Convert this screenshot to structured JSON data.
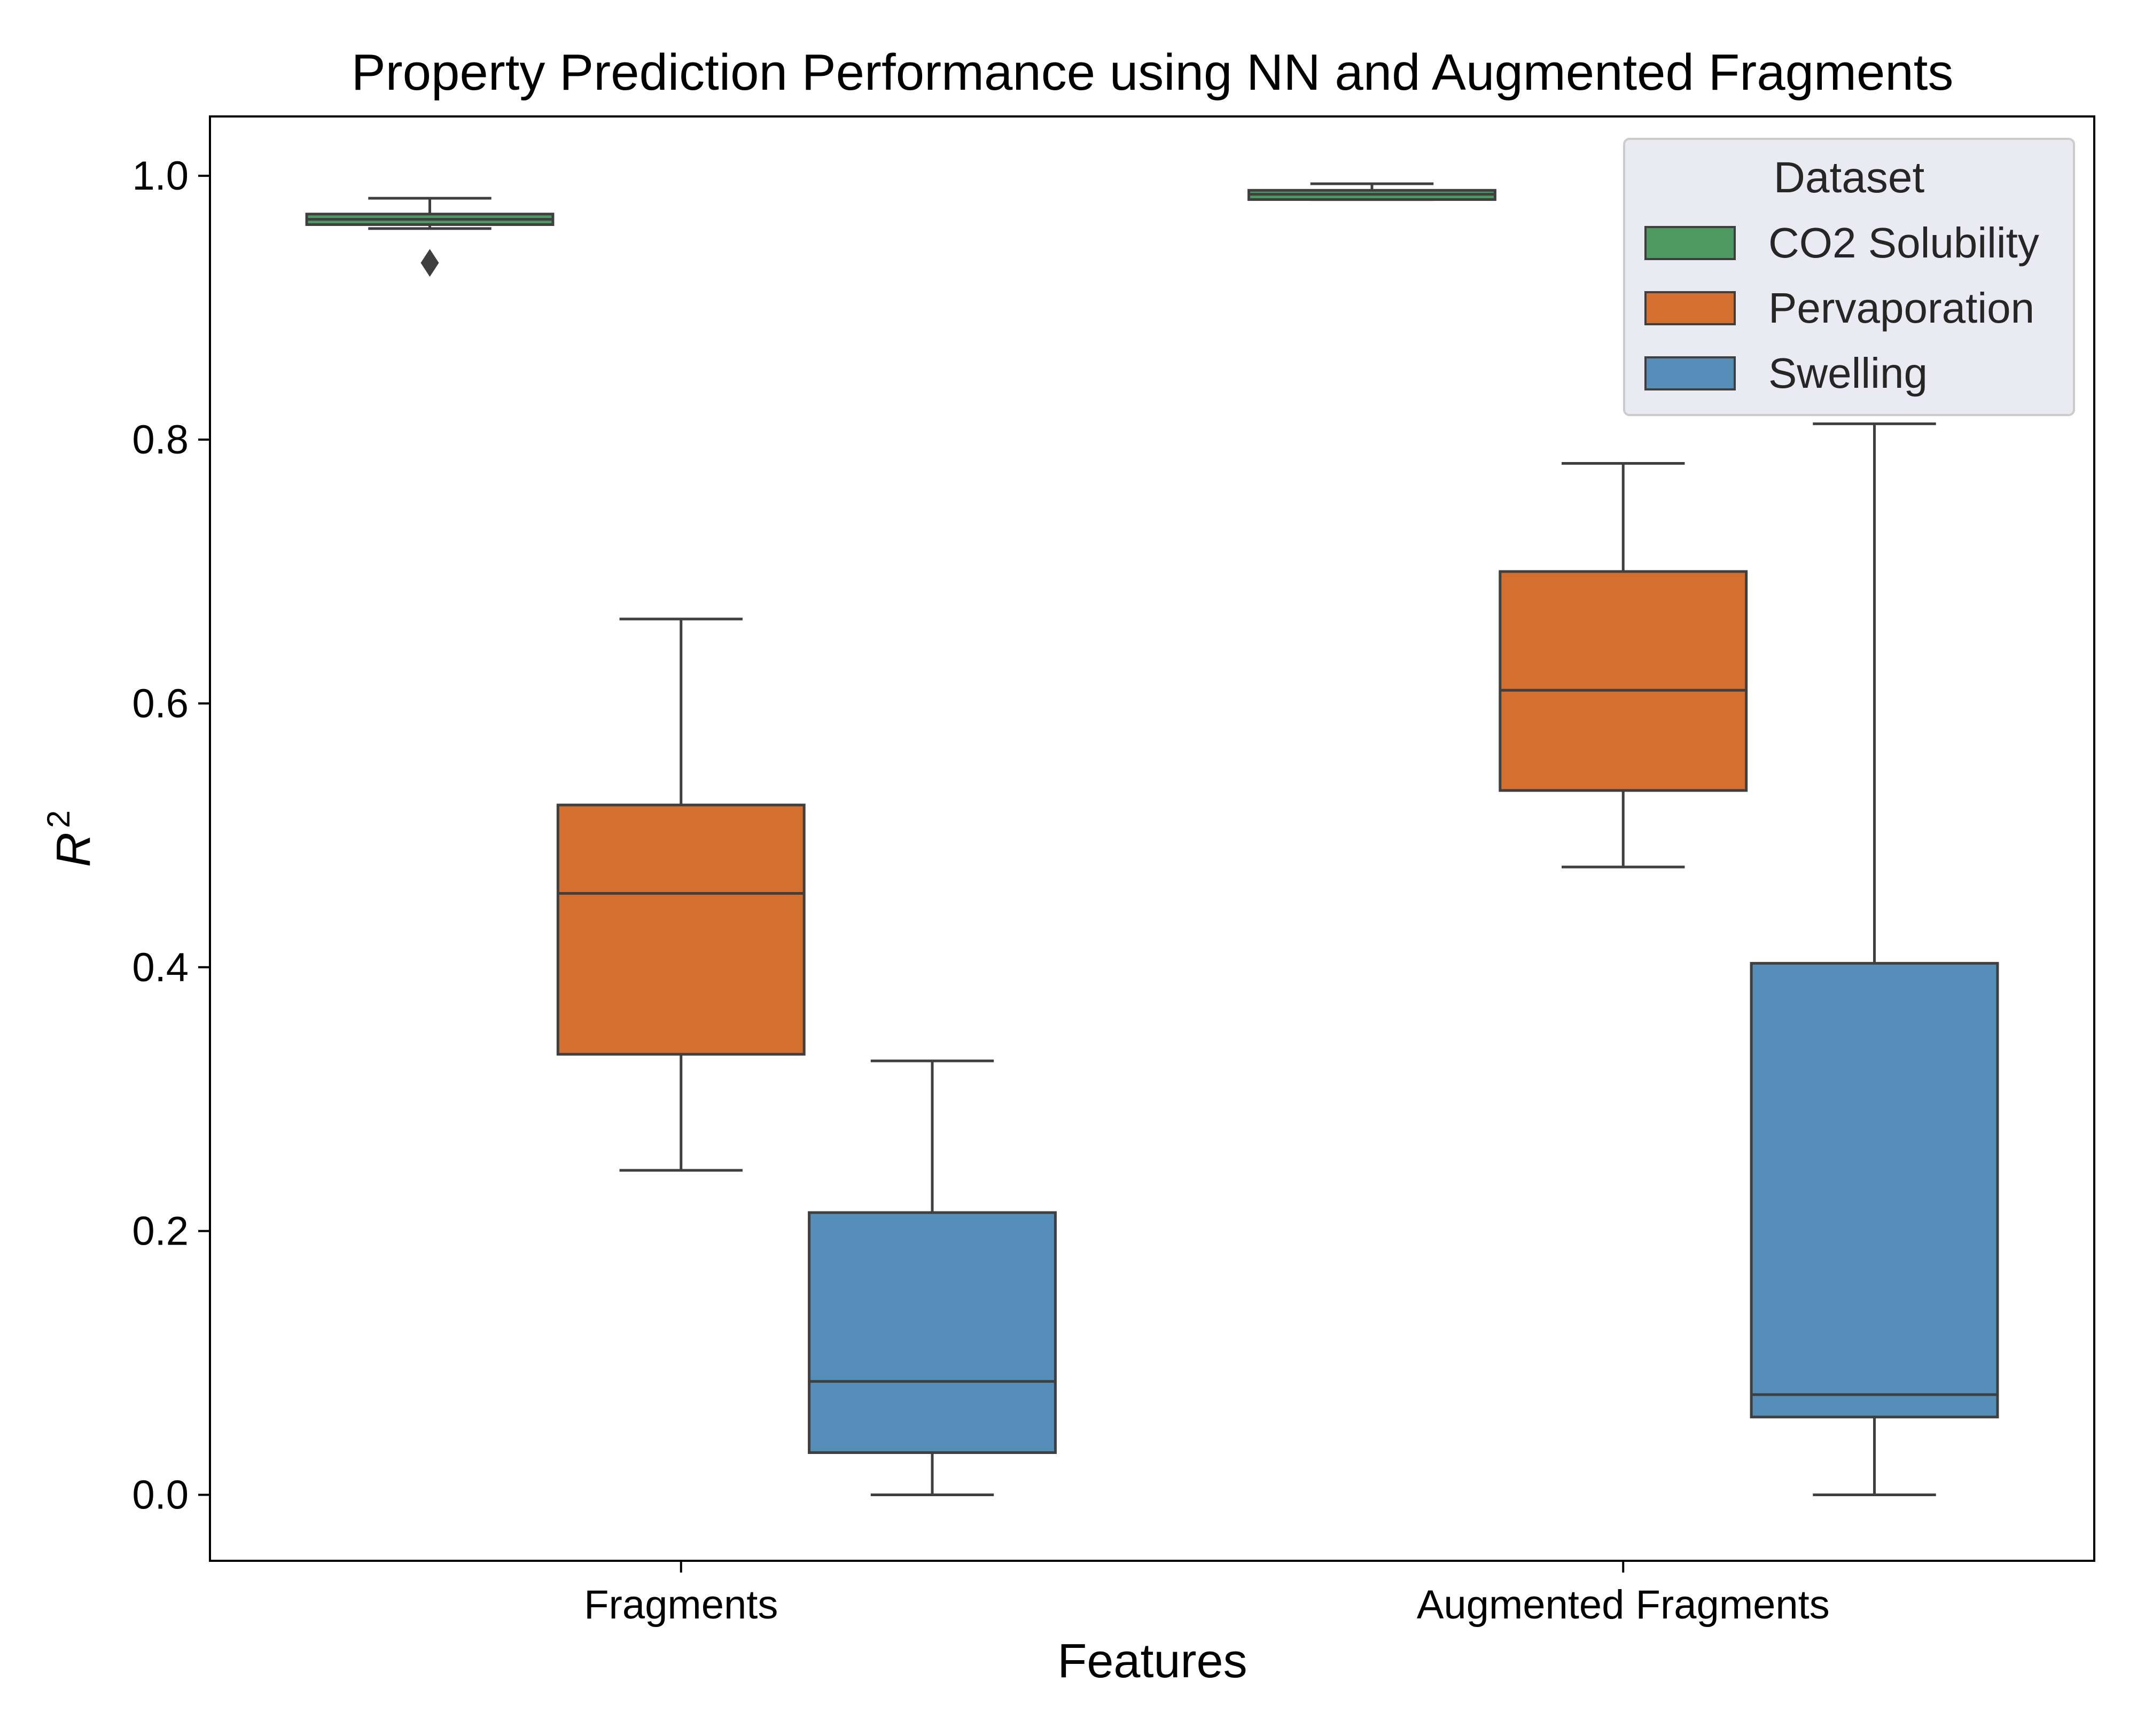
{
  "chart_data": {
    "type": "box",
    "title": "Property Prediction Performance using NN and Augmented Fragments",
    "xlabel": "Features",
    "ylabel": "R",
    "ylabel_superscript": "2",
    "categories": [
      "Fragments",
      "Augmented Fragments"
    ],
    "ylim": [
      -0.05,
      1.045
    ],
    "yticks": [
      "0.0",
      "0.2",
      "0.4",
      "0.6",
      "0.8",
      "1.0"
    ],
    "ytick_values": [
      0.0,
      0.2,
      0.4,
      0.6,
      0.8,
      1.0
    ],
    "grid": false,
    "legend": {
      "title": "Dataset",
      "placement": "top-right",
      "entries": [
        "CO2 Solubility",
        "Pervaporation",
        "Swelling"
      ]
    },
    "series": [
      {
        "name": "CO2 Solubility",
        "color": "#4c9a5f",
        "boxes": [
          {
            "category": "Fragments",
            "whisker_low": 0.96,
            "q1": 0.963,
            "median": 0.967,
            "q3": 0.971,
            "whisker_high": 0.983,
            "outliers": [
              0.934
            ]
          },
          {
            "category": "Augmented Fragments",
            "whisker_low": 0.982,
            "q1": 0.982,
            "median": 0.986,
            "q3": 0.989,
            "whisker_high": 0.994,
            "outliers": []
          }
        ]
      },
      {
        "name": "Pervaporation",
        "color": "#d46f2f",
        "boxes": [
          {
            "category": "Fragments",
            "whisker_low": 0.246,
            "q1": 0.334,
            "median": 0.456,
            "q3": 0.523,
            "whisker_high": 0.664,
            "outliers": []
          },
          {
            "category": "Augmented Fragments",
            "whisker_low": 0.476,
            "q1": 0.534,
            "median": 0.61,
            "q3": 0.7,
            "whisker_high": 0.782,
            "outliers": []
          }
        ]
      },
      {
        "name": "Swelling",
        "color": "#538db8",
        "boxes": [
          {
            "category": "Fragments",
            "whisker_low": 0.0,
            "q1": 0.032,
            "median": 0.086,
            "q3": 0.214,
            "whisker_high": 0.329,
            "outliers": []
          },
          {
            "category": "Augmented Fragments",
            "whisker_low": 0.0,
            "q1": 0.059,
            "median": 0.076,
            "q3": 0.403,
            "whisker_high": 0.812,
            "outliers": []
          }
        ]
      }
    ]
  }
}
